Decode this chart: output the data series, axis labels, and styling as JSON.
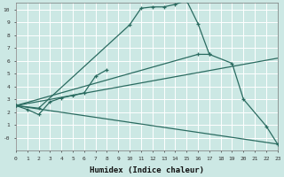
{
  "title": "",
  "xlabel": "Humidex (Indice chaleur)",
  "background_color": "#cce8e4",
  "grid_color": "#b0d4d0",
  "line_color": "#2a6b60",
  "xlim": [
    0,
    23
  ],
  "ylim": [
    -1.0,
    10.5
  ],
  "line1": {
    "x": [
      0,
      1,
      2,
      3,
      4,
      5,
      6,
      7,
      8
    ],
    "y": [
      2.5,
      2.2,
      1.8,
      2.8,
      3.1,
      3.3,
      3.5,
      4.8,
      5.3
    ],
    "has_markers": true
  },
  "line2": {
    "x": [
      0,
      2,
      10,
      11,
      12,
      13,
      14,
      15,
      16,
      17
    ],
    "y": [
      2.5,
      2.3,
      8.8,
      10.1,
      10.2,
      10.2,
      10.4,
      10.7,
      8.9,
      6.5
    ],
    "has_markers": true
  },
  "line3": {
    "x": [
      0,
      16,
      17,
      19,
      20,
      22,
      23
    ],
    "y": [
      2.5,
      6.5,
      6.5,
      5.8,
      3.0,
      0.9,
      -0.5
    ],
    "has_markers": true
  },
  "line4": {
    "x": [
      0,
      23
    ],
    "y": [
      2.5,
      6.2
    ],
    "has_markers": false
  },
  "line5": {
    "x": [
      0,
      23
    ],
    "y": [
      2.5,
      -0.5
    ],
    "has_markers": false
  },
  "yticks": [
    0,
    1,
    2,
    3,
    4,
    5,
    6,
    7,
    8,
    9,
    10
  ],
  "ytick_labels": [
    "-0",
    "1",
    "2",
    "3",
    "4",
    "5",
    "6",
    "7",
    "8",
    "9",
    "10"
  ],
  "xticks": [
    0,
    1,
    2,
    3,
    4,
    5,
    6,
    7,
    8,
    9,
    10,
    11,
    12,
    13,
    14,
    15,
    16,
    17,
    18,
    19,
    20,
    21,
    22,
    23
  ]
}
